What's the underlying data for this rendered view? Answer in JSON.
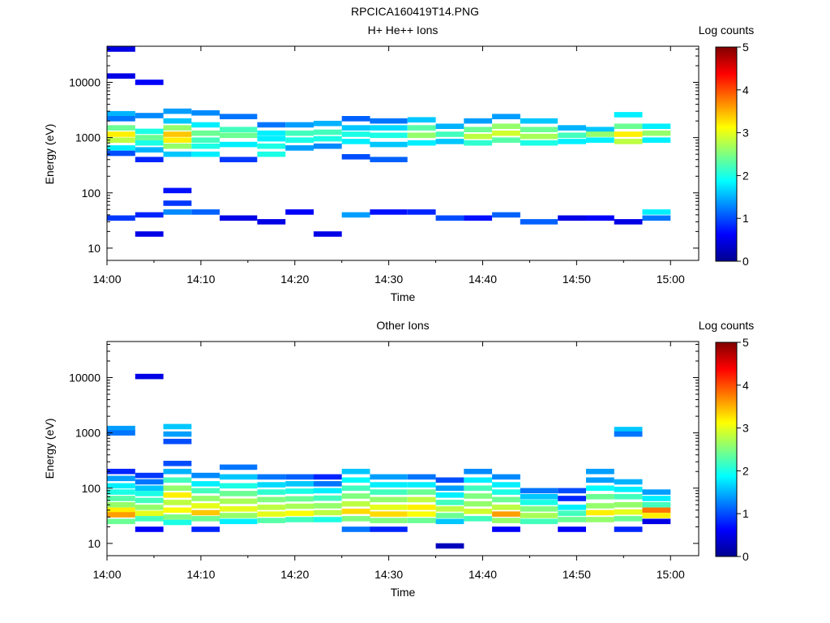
{
  "figure_title": "RPCICA160419T14.PNG",
  "chart_data": [
    {
      "type": "heatmap",
      "title": "H+ He++ Ions",
      "xlabel": "Time",
      "ylabel": "Energy (eV)",
      "yscale": "log",
      "ylim": [
        6,
        45000
      ],
      "xlim": [
        "14:00",
        "15:03"
      ],
      "xticks": [
        "14:00",
        "14:10",
        "14:20",
        "14:30",
        "14:40",
        "14:50",
        "15:00"
      ],
      "yticks": [
        "10",
        "100",
        "1000",
        "10000"
      ],
      "colorbar": {
        "label": "Log counts",
        "range": [
          0,
          5
        ],
        "ticks": [
          "0",
          "1",
          "2",
          "3",
          "4",
          "5"
        ]
      },
      "sweep_starts": [
        "14:00",
        "14:03",
        "14:06",
        "14:09",
        "14:12",
        "14:16",
        "14:19",
        "14:22",
        "14:25",
        "14:28",
        "14:32",
        "14:35",
        "14:38",
        "14:41",
        "14:44",
        "14:48",
        "14:51",
        "14:54",
        "14:57",
        "15:00"
      ],
      "cells": [
        [
          0,
          40000,
          0.5
        ],
        [
          0,
          13000,
          0.5
        ],
        [
          0,
          2700,
          1.5
        ],
        [
          0,
          2200,
          1.2
        ],
        [
          0,
          1500,
          2.4
        ],
        [
          0,
          1150,
          3.2
        ],
        [
          0,
          900,
          2.8
        ],
        [
          0,
          650,
          1.8
        ],
        [
          0,
          520,
          1
        ],
        [
          0,
          35,
          0.9
        ],
        [
          1,
          10000,
          0.6
        ],
        [
          1,
          2500,
          1.3
        ],
        [
          1,
          1300,
          2
        ],
        [
          1,
          1000,
          2.4
        ],
        [
          1,
          800,
          2
        ],
        [
          1,
          600,
          1.5
        ],
        [
          1,
          400,
          0.8
        ],
        [
          1,
          40,
          0.8
        ],
        [
          1,
          18,
          0.5
        ],
        [
          2,
          3000,
          1.4
        ],
        [
          2,
          2000,
          1.6
        ],
        [
          2,
          1500,
          2.6
        ],
        [
          2,
          1150,
          3.4
        ],
        [
          2,
          900,
          3.2
        ],
        [
          2,
          700,
          2.6
        ],
        [
          2,
          500,
          1.6
        ],
        [
          2,
          110,
          0.7
        ],
        [
          2,
          65,
          0.9
        ],
        [
          2,
          45,
          1.3
        ],
        [
          3,
          2800,
          1.3
        ],
        [
          3,
          1700,
          1.8
        ],
        [
          3,
          1200,
          2.4
        ],
        [
          3,
          900,
          2.2
        ],
        [
          3,
          700,
          2
        ],
        [
          3,
          500,
          1.8
        ],
        [
          3,
          45,
          1.1
        ],
        [
          4,
          2400,
          1.2
        ],
        [
          4,
          1400,
          2.2
        ],
        [
          4,
          1100,
          2.4
        ],
        [
          4,
          750,
          1.8
        ],
        [
          4,
          400,
          0.9
        ],
        [
          4,
          35,
          0.5
        ],
        [
          5,
          1700,
          1.2
        ],
        [
          5,
          1200,
          1.8
        ],
        [
          5,
          950,
          1.8
        ],
        [
          5,
          700,
          2
        ],
        [
          5,
          500,
          2
        ],
        [
          5,
          30,
          0.5
        ],
        [
          6,
          1700,
          1.4
        ],
        [
          6,
          1200,
          2.2
        ],
        [
          6,
          900,
          2
        ],
        [
          6,
          650,
          1.4
        ],
        [
          6,
          45,
          0.6
        ],
        [
          7,
          1800,
          1.5
        ],
        [
          7,
          1250,
          2.2
        ],
        [
          7,
          950,
          2
        ],
        [
          7,
          700,
          1.3
        ],
        [
          7,
          18,
          0.5
        ],
        [
          8,
          2200,
          1.1
        ],
        [
          8,
          1500,
          1.6
        ],
        [
          8,
          1150,
          2
        ],
        [
          8,
          850,
          1.8
        ],
        [
          8,
          450,
          1
        ],
        [
          8,
          40,
          1.4
        ],
        [
          9,
          2000,
          1.2
        ],
        [
          9,
          1500,
          1.7
        ],
        [
          9,
          1100,
          2
        ],
        [
          9,
          750,
          1.6
        ],
        [
          9,
          400,
          1.1
        ],
        [
          9,
          45,
          0.7
        ],
        [
          10,
          2100,
          1.6
        ],
        [
          10,
          1500,
          2.3
        ],
        [
          10,
          1100,
          2.6
        ],
        [
          10,
          800,
          1.8
        ],
        [
          10,
          45,
          0.8
        ],
        [
          11,
          1600,
          1.5
        ],
        [
          11,
          1150,
          2.2
        ],
        [
          11,
          850,
          1.6
        ],
        [
          11,
          35,
          1
        ],
        [
          12,
          2000,
          1.4
        ],
        [
          12,
          1400,
          2.4
        ],
        [
          12,
          1050,
          2.8
        ],
        [
          12,
          800,
          2.1
        ],
        [
          12,
          35,
          0.7
        ],
        [
          13,
          2400,
          1.4
        ],
        [
          13,
          1600,
          2.6
        ],
        [
          13,
          1200,
          2.9
        ],
        [
          13,
          900,
          2.3
        ],
        [
          13,
          40,
          1.1
        ],
        [
          14,
          2000,
          1.6
        ],
        [
          14,
          1400,
          2.4
        ],
        [
          14,
          1050,
          2.7
        ],
        [
          14,
          800,
          2
        ],
        [
          14,
          30,
          1.1
        ],
        [
          15,
          1500,
          1.5
        ],
        [
          15,
          1100,
          2.2
        ],
        [
          15,
          850,
          1.8
        ],
        [
          15,
          35,
          0.5
        ],
        [
          16,
          1400,
          1.6
        ],
        [
          16,
          1150,
          2.6
        ],
        [
          16,
          900,
          1.8
        ],
        [
          16,
          35,
          0.6
        ],
        [
          17,
          2600,
          1.8
        ],
        [
          17,
          1600,
          2.4
        ],
        [
          17,
          1150,
          3.2
        ],
        [
          17,
          850,
          2.8
        ],
        [
          17,
          30,
          0.5
        ],
        [
          18,
          1600,
          1.8
        ],
        [
          18,
          1200,
          2.6
        ],
        [
          18,
          900,
          1.8
        ],
        [
          18,
          45,
          1.8
        ],
        [
          18,
          35,
          1.2
        ]
      ]
    },
    {
      "type": "heatmap",
      "title": "Other Ions",
      "xlabel": "Time",
      "ylabel": "Energy (eV)",
      "yscale": "log",
      "ylim": [
        6,
        45000
      ],
      "xlim": [
        "14:00",
        "15:03"
      ],
      "xticks": [
        "14:00",
        "14:10",
        "14:20",
        "14:30",
        "14:40",
        "14:50",
        "15:00"
      ],
      "yticks": [
        "10",
        "100",
        "1000",
        "10000"
      ],
      "colorbar": {
        "label": "Log counts",
        "range": [
          0,
          5
        ],
        "ticks": [
          "0",
          "1",
          "2",
          "3",
          "4",
          "5"
        ]
      },
      "sweep_starts": [
        "14:00",
        "14:03",
        "14:06",
        "14:09",
        "14:12",
        "14:16",
        "14:19",
        "14:22",
        "14:25",
        "14:28",
        "14:32",
        "14:35",
        "14:38",
        "14:41",
        "14:44",
        "14:48",
        "14:51",
        "14:54",
        "14:57",
        "15:00"
      ],
      "cells": [
        [
          0,
          1200,
          1.4
        ],
        [
          0,
          1000,
          1.2
        ],
        [
          0,
          200,
          0.8
        ],
        [
          0,
          150,
          1.4
        ],
        [
          0,
          110,
          1.8
        ],
        [
          0,
          85,
          2
        ],
        [
          0,
          65,
          2.3
        ],
        [
          0,
          50,
          2.6
        ],
        [
          0,
          40,
          3.2
        ],
        [
          0,
          33,
          3.6
        ],
        [
          0,
          25,
          2.4
        ],
        [
          1,
          10500,
          0.5
        ],
        [
          1,
          170,
          0.9
        ],
        [
          1,
          130,
          1.2
        ],
        [
          1,
          100,
          1.6
        ],
        [
          1,
          80,
          2
        ],
        [
          1,
          60,
          2.2
        ],
        [
          1,
          45,
          2.6
        ],
        [
          1,
          35,
          3
        ],
        [
          1,
          28,
          2.2
        ],
        [
          1,
          18,
          0.6
        ],
        [
          2,
          1300,
          1.6
        ],
        [
          2,
          950,
          1.4
        ],
        [
          2,
          700,
          1
        ],
        [
          2,
          280,
          1
        ],
        [
          2,
          200,
          1.5
        ],
        [
          2,
          140,
          2.2
        ],
        [
          2,
          100,
          2.6
        ],
        [
          2,
          75,
          3.2
        ],
        [
          2,
          55,
          2.8
        ],
        [
          2,
          40,
          3.1
        ],
        [
          2,
          30,
          2.5
        ],
        [
          2,
          24,
          2
        ],
        [
          3,
          170,
          1.3
        ],
        [
          3,
          120,
          1.8
        ],
        [
          3,
          90,
          2.2
        ],
        [
          3,
          65,
          2.6
        ],
        [
          3,
          48,
          3
        ],
        [
          3,
          36,
          3.4
        ],
        [
          3,
          28,
          2.4
        ],
        [
          3,
          18,
          0.8
        ],
        [
          4,
          240,
          1.2
        ],
        [
          4,
          160,
          1.6
        ],
        [
          4,
          110,
          2
        ],
        [
          4,
          80,
          2.4
        ],
        [
          4,
          58,
          2.7
        ],
        [
          4,
          42,
          3
        ],
        [
          4,
          32,
          2.6
        ],
        [
          4,
          25,
          1.8
        ],
        [
          5,
          160,
          1.2
        ],
        [
          5,
          115,
          1.7
        ],
        [
          5,
          85,
          2.1
        ],
        [
          5,
          62,
          2.5
        ],
        [
          5,
          45,
          2.8
        ],
        [
          5,
          34,
          3
        ],
        [
          5,
          26,
          2.3
        ],
        [
          6,
          160,
          1.1
        ],
        [
          6,
          120,
          1.6
        ],
        [
          6,
          88,
          2
        ],
        [
          6,
          64,
          2.4
        ],
        [
          6,
          47,
          2.7
        ],
        [
          6,
          35,
          3.1
        ],
        [
          6,
          27,
          2.2
        ],
        [
          7,
          160,
          0.8
        ],
        [
          7,
          120,
          1.2
        ],
        [
          7,
          90,
          1.8
        ],
        [
          7,
          66,
          2.2
        ],
        [
          7,
          48,
          2.6
        ],
        [
          7,
          36,
          2.8
        ],
        [
          7,
          27,
          2
        ],
        [
          8,
          200,
          1.6
        ],
        [
          8,
          140,
          1.9
        ],
        [
          8,
          100,
          2.2
        ],
        [
          8,
          72,
          2.5
        ],
        [
          8,
          52,
          2.8
        ],
        [
          8,
          38,
          3.3
        ],
        [
          8,
          28,
          2.5
        ],
        [
          8,
          18,
          1.2
        ],
        [
          9,
          160,
          1.4
        ],
        [
          9,
          115,
          1.8
        ],
        [
          9,
          85,
          2.2
        ],
        [
          9,
          62,
          2.6
        ],
        [
          9,
          45,
          3
        ],
        [
          9,
          34,
          3.3
        ],
        [
          9,
          26,
          2.5
        ],
        [
          9,
          18,
          0.8
        ],
        [
          10,
          160,
          1.2
        ],
        [
          10,
          115,
          1.8
        ],
        [
          10,
          85,
          2.4
        ],
        [
          10,
          62,
          2.8
        ],
        [
          10,
          45,
          3.2
        ],
        [
          10,
          34,
          3.1
        ],
        [
          10,
          26,
          2.4
        ],
        [
          11,
          140,
          1
        ],
        [
          11,
          100,
          1.4
        ],
        [
          11,
          75,
          1.8
        ],
        [
          11,
          55,
          2.2
        ],
        [
          11,
          42,
          2.8
        ],
        [
          11,
          32,
          2.4
        ],
        [
          11,
          25,
          1.6
        ],
        [
          11,
          9,
          0.3
        ],
        [
          12,
          200,
          1.3
        ],
        [
          12,
          140,
          1.8
        ],
        [
          12,
          100,
          2.2
        ],
        [
          12,
          72,
          2.5
        ],
        [
          12,
          52,
          2.6
        ],
        [
          12,
          38,
          2.9
        ],
        [
          12,
          28,
          2.2
        ],
        [
          13,
          160,
          1.3
        ],
        [
          13,
          115,
          1.8
        ],
        [
          13,
          85,
          2
        ],
        [
          13,
          62,
          2.4
        ],
        [
          13,
          45,
          2.8
        ],
        [
          13,
          34,
          3.6
        ],
        [
          13,
          26,
          2.6
        ],
        [
          13,
          18,
          0.6
        ],
        [
          14,
          90,
          1.2
        ],
        [
          14,
          70,
          1.6
        ],
        [
          14,
          55,
          2
        ],
        [
          14,
          42,
          2.5
        ],
        [
          14,
          32,
          2.7
        ],
        [
          14,
          25,
          2.2
        ],
        [
          15,
          90,
          1
        ],
        [
          15,
          65,
          0.8
        ],
        [
          15,
          45,
          1.8
        ],
        [
          15,
          35,
          2.2
        ],
        [
          15,
          27,
          2.4
        ],
        [
          15,
          18,
          0.6
        ],
        [
          16,
          200,
          1.4
        ],
        [
          16,
          140,
          1.4
        ],
        [
          16,
          100,
          1.9
        ],
        [
          16,
          70,
          2.4
        ],
        [
          16,
          48,
          2.6
        ],
        [
          16,
          36,
          3.2
        ],
        [
          16,
          27,
          2.6
        ],
        [
          17,
          1150,
          1.6
        ],
        [
          17,
          950,
          1.2
        ],
        [
          17,
          130,
          1.5
        ],
        [
          17,
          95,
          1.8
        ],
        [
          17,
          70,
          2.2
        ],
        [
          17,
          50,
          2.6
        ],
        [
          17,
          37,
          3
        ],
        [
          17,
          28,
          2.4
        ],
        [
          17,
          18,
          0.8
        ],
        [
          18,
          85,
          1.4
        ],
        [
          18,
          65,
          1.8
        ],
        [
          18,
          50,
          2.2
        ],
        [
          18,
          40,
          3.8
        ],
        [
          18,
          32,
          3.2
        ],
        [
          18,
          25,
          0.5
        ]
      ]
    }
  ]
}
